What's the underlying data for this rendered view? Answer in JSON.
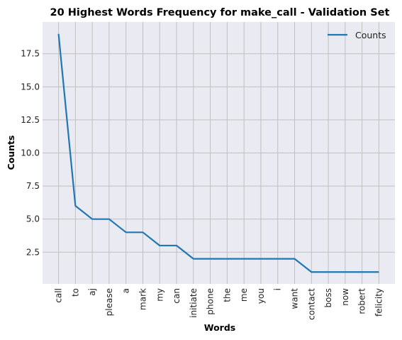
{
  "chart_data": {
    "type": "line",
    "title": "20 Highest Words Frequency for make_call - Validation Set",
    "xlabel": "Words",
    "ylabel": "Counts",
    "categories": [
      "call",
      "to",
      "aj",
      "please",
      "a",
      "mark",
      "my",
      "can",
      "initiate",
      "phone",
      "the",
      "me",
      "you",
      "i",
      "want",
      "contact",
      "boss",
      "now",
      "robert",
      "felicity"
    ],
    "series": [
      {
        "name": "Counts",
        "values": [
          19,
          6,
          5,
          5,
          4,
          4,
          3,
          3,
          2,
          2,
          2,
          2,
          2,
          2,
          2,
          1,
          1,
          1,
          1,
          1
        ],
        "color": "#1f77b4"
      }
    ],
    "ylim": [
      0.1,
      19.9
    ],
    "yticks": [
      2.5,
      5.0,
      7.5,
      10.0,
      12.5,
      15.0,
      17.5
    ],
    "ytick_labels": [
      "2.5",
      "5.0",
      "7.5",
      "10.0",
      "12.5",
      "15.0",
      "17.5"
    ],
    "grid": true,
    "legend_position": "top-right",
    "background_color": "#eaeaf2",
    "grid_color": "#c0c0c0"
  }
}
